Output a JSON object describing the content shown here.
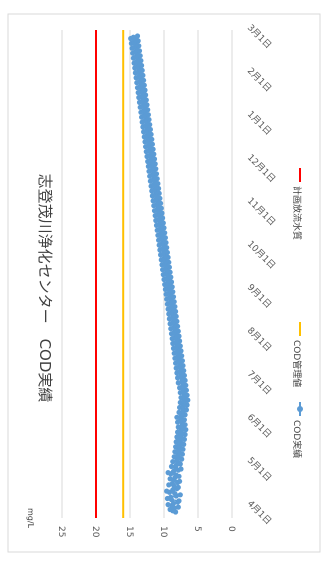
{
  "chart_data": {
    "type": "line",
    "title": "志登茂川浄化センター　COD実績",
    "ylabel": "mg/L",
    "ylim": [
      0,
      25
    ],
    "y_ticks": [
      "0",
      "5",
      "10",
      "15",
      "20",
      "25"
    ],
    "x_ticks": [
      "4月1日",
      "5月1日",
      "6月1日",
      "7月1日",
      "8月1日",
      "9月1日",
      "10月1日",
      "11月1日",
      "12月1日",
      "1月1日",
      "2月1日",
      "3月1日"
    ],
    "legend_position": "right",
    "grid": true,
    "series": [
      {
        "name": "COD実績",
        "color": "#5b9bd5",
        "marker": "circle",
        "values": [
          8.3,
          8.7,
          9.1,
          8.5,
          7.9,
          8.8,
          9.4,
          8.6,
          8.0,
          7.8,
          8.9,
          9.5,
          9.0,
          8.2,
          7.6,
          8.4,
          9.2,
          9.6,
          8.7,
          8.1,
          7.9,
          8.5,
          9.3,
          8.8,
          8.0,
          7.7,
          8.6,
          9.1,
          8.4,
          7.8,
          8.2,
          9.0,
          9.4,
          8.6,
          7.9,
          7.5,
          8.3,
          8.9,
          8.2,
          7.6,
          7.9,
          8.7,
          8.1,
          7.4,
          7.8,
          8.5,
          8.0,
          7.3,
          7.7,
          8.4,
          7.9,
          7.2,
          7.6,
          8.3,
          7.8,
          7.1,
          7.5,
          8.2,
          7.7,
          7.0,
          7.4,
          8.1,
          7.6,
          6.9,
          7.3,
          8.0,
          7.5,
          6.8,
          7.2,
          7.9,
          7.4,
          6.9,
          7.3,
          8.0,
          7.6,
          7.0,
          7.4,
          8.1,
          7.5,
          6.9,
          7.3,
          7.8,
          7.2,
          6.7,
          7.1,
          7.7,
          7.2,
          6.6,
          7.0,
          7.6,
          7.1,
          6.5,
          6.9,
          7.5,
          7.0,
          6.6,
          7.0,
          7.6,
          7.2,
          6.7,
          7.1,
          7.7,
          7.3,
          6.8,
          7.2,
          7.9,
          7.4,
          6.9,
          7.3,
          8.0,
          7.6,
          7.0,
          7.4,
          8.1,
          7.7,
          7.1,
          7.5,
          8.2,
          7.8,
          7.2,
          7.6,
          8.3,
          7.9,
          7.3,
          7.7,
          8.4,
          8.0,
          7.4,
          7.8,
          8.5,
          8.1,
          7.5,
          7.9,
          8.6,
          8.2,
          7.6,
          8.0,
          8.7,
          8.3,
          7.7,
          8.1,
          8.8,
          8.4,
          7.8,
          8.2,
          8.9,
          8.5,
          7.9,
          8.3,
          9.0,
          8.6,
          8.0,
          8.4,
          9.1,
          8.7,
          8.1,
          8.5,
          9.2,
          8.8,
          8.2,
          8.6,
          9.3,
          8.9,
          8.3,
          8.7,
          9.4,
          9.0,
          8.4,
          8.8,
          9.5,
          9.1,
          8.5,
          8.9,
          9.6,
          9.2,
          8.6,
          9.0,
          9.7,
          9.3,
          8.7,
          9.1,
          9.8,
          9.4,
          8.8,
          9.2,
          9.9,
          9.5,
          8.9,
          9.3,
          10.0,
          9.6,
          9.0,
          9.4,
          10.1,
          9.7,
          9.1,
          9.5,
          10.2,
          9.8,
          9.2,
          9.6,
          10.3,
          9.9,
          9.3,
          9.7,
          10.4,
          10.0,
          9.4,
          9.8,
          10.5,
          10.1,
          9.5,
          9.9,
          10.6,
          10.2,
          9.6,
          10.0,
          10.7,
          10.3,
          9.7,
          10.1,
          10.8,
          10.4,
          9.8,
          10.2,
          10.9,
          10.5,
          9.9,
          10.3,
          11.0,
          10.6,
          10.0,
          10.4,
          11.1,
          10.7,
          10.1,
          10.5,
          11.2,
          10.8,
          10.2,
          10.6,
          11.3,
          10.9,
          10.3,
          10.7,
          11.4,
          11.0,
          10.4,
          10.8,
          11.5,
          11.1,
          10.5,
          10.9,
          11.6,
          11.2,
          10.6,
          11.0,
          11.7,
          11.3,
          10.7,
          11.1,
          11.8,
          11.4,
          10.8,
          11.2,
          11.9,
          11.5,
          10.9,
          11.3,
          12.0,
          11.6,
          11.0,
          11.4,
          12.1,
          11.7,
          11.1,
          11.5,
          12.2,
          11.8,
          11.2,
          11.6,
          12.3,
          11.9,
          11.3,
          11.7,
          12.4,
          12.0,
          11.4,
          11.8,
          12.5,
          12.1,
          11.5,
          11.9,
          12.6,
          12.2,
          11.6,
          12.0,
          12.7,
          12.3,
          11.7,
          12.1,
          12.8,
          12.4,
          11.8,
          12.2,
          12.9,
          12.5,
          11.9,
          12.3,
          13.0,
          12.6,
          12.0,
          12.4,
          13.1,
          12.7,
          12.1,
          12.5,
          13.2,
          12.8,
          12.2,
          12.6,
          13.3,
          12.9,
          12.3,
          12.7,
          13.4,
          13.0,
          12.4,
          12.8,
          13.5,
          13.1,
          12.5,
          12.9,
          13.6,
          13.2,
          12.6,
          13.0,
          13.7,
          13.3,
          12.7,
          13.1,
          13.8,
          13.4,
          12.8,
          13.2,
          13.9,
          13.5,
          12.9,
          13.3,
          14.0,
          13.6,
          13.0,
          13.4,
          14.1,
          13.7,
          13.1,
          13.5,
          14.2,
          13.8,
          13.2,
          13.6,
          14.3,
          13.9,
          13.3,
          13.7,
          14.4,
          14.0,
          13.4,
          13.8,
          14.5,
          14.1,
          13.5,
          13.9,
          14.6,
          14.2,
          13.6,
          14.0,
          14.7,
          14.3,
          13.7,
          14.1,
          14.8,
          14.4,
          13.8,
          14.2,
          14.9,
          14.5,
          13.9
        ]
      },
      {
        "name": "COD管理値",
        "color": "#ffc000",
        "values": [
          16
        ]
      },
      {
        "name": "計画放流水質",
        "color": "#ff0000",
        "values": [
          20
        ]
      }
    ]
  }
}
